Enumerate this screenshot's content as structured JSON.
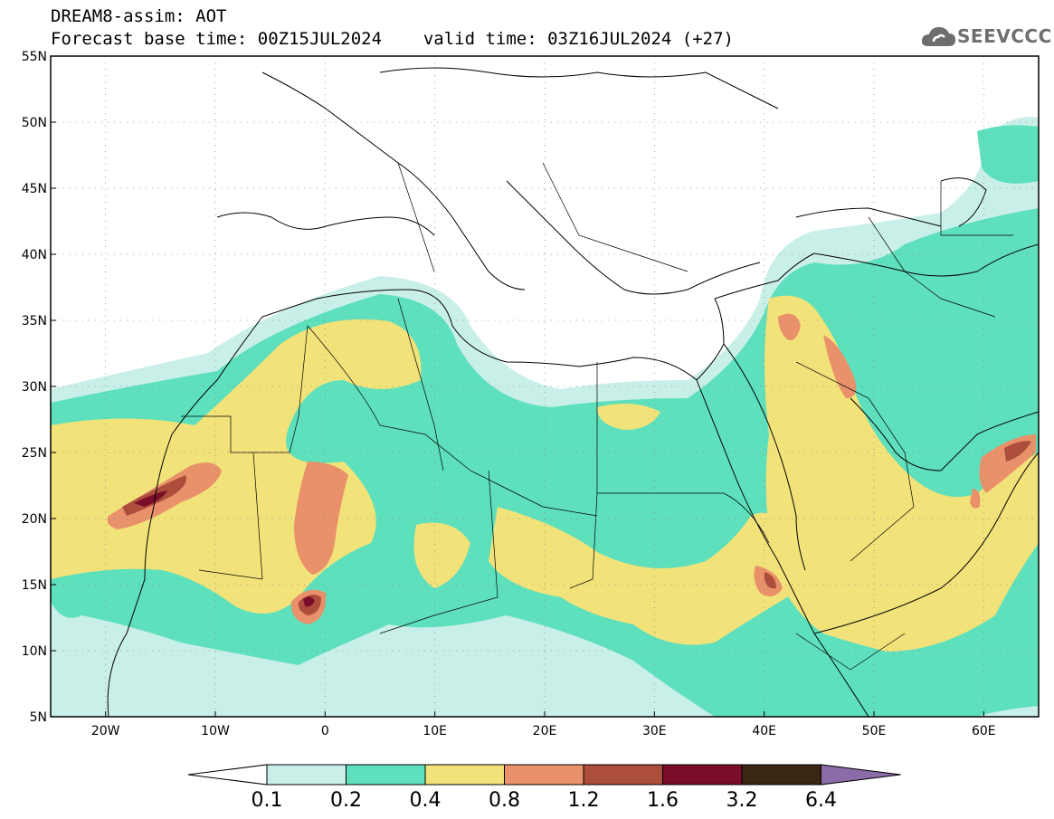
{
  "header": {
    "model_line": "DREAM8-assim: AOT",
    "forecast_base_label": "Forecast base time: 00Z15JUL2024",
    "valid_time_label": "valid time: 03Z16JUL2024 (+27)"
  },
  "logo": {
    "text": "SEEVCCC",
    "icon": "cloud-icon"
  },
  "map": {
    "projection": "lat-lon",
    "lon_range": [
      -25,
      65
    ],
    "lat_range": [
      5,
      55
    ],
    "lat_ticks": [
      "55N",
      "50N",
      "45N",
      "40N",
      "35N",
      "30N",
      "25N",
      "20N",
      "15N",
      "10N",
      "5N"
    ],
    "lon_ticks": [
      "20W",
      "10W",
      "0",
      "10E",
      "20E",
      "30E",
      "40E",
      "50E",
      "60E"
    ],
    "gridlines": "dotted",
    "field": "aerosol optical thickness"
  },
  "colorbar": {
    "thresholds": [
      "0.1",
      "0.2",
      "0.4",
      "0.8",
      "1.2",
      "1.6",
      "3.2",
      "6.4"
    ],
    "colors": [
      "#ffffff",
      "#c9efe9",
      "#5ee0bc",
      "#f2e27a",
      "#e8916a",
      "#ad4d3c",
      "#7a0e2a",
      "#3a2612",
      "#8b6ba8"
    ]
  },
  "colors": {
    "c02": "#c9efe9",
    "c04": "#5ee0bc",
    "c08": "#f2e27a",
    "c12": "#e8916a",
    "c16": "#ad4d3c",
    "c32": "#7a0e2a",
    "land_line": "#000000"
  }
}
